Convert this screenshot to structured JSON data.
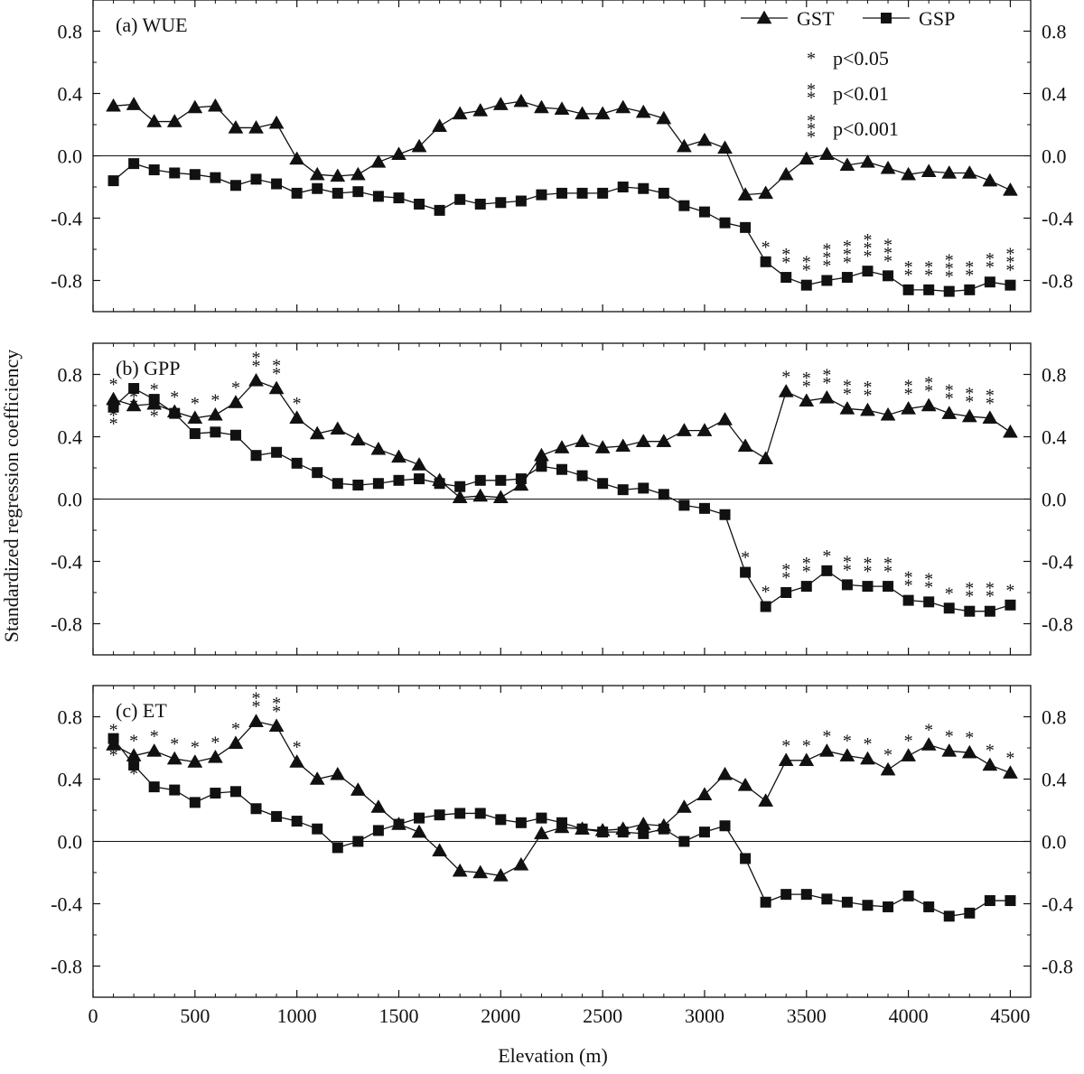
{
  "chart_data": {
    "type": "line",
    "xlabel": "Elevation (m)",
    "ylabel": "Standardized regression coefficiency",
    "xlim": [
      0,
      4600
    ],
    "x_ticks": [
      0,
      500,
      1000,
      1500,
      2000,
      2500,
      3000,
      3500,
      4000,
      4500
    ],
    "x_tick_labels": [
      "0",
      "500",
      "1000",
      "1500",
      "2000",
      "2500",
      "3000",
      "3500",
      "4000",
      "4500"
    ],
    "ylim": [
      -1.0,
      1.0
    ],
    "y_ticks": [
      0.8,
      0.4,
      0.0,
      -0.4,
      -0.8
    ],
    "y_tick_labels": [
      "0.8",
      "0.4",
      "0.0",
      "-0.4",
      "-0.8"
    ],
    "x": [
      100,
      200,
      300,
      400,
      500,
      600,
      700,
      800,
      900,
      1000,
      1100,
      1200,
      1300,
      1400,
      1500,
      1600,
      1700,
      1800,
      1900,
      2000,
      2100,
      2200,
      2300,
      2400,
      2500,
      2600,
      2700,
      2800,
      2900,
      3000,
      3100,
      3200,
      3300,
      3400,
      3500,
      3600,
      3700,
      3800,
      3900,
      4000,
      4100,
      4200,
      4300,
      4400,
      4500
    ],
    "legend": {
      "entries": [
        {
          "name": "GST",
          "marker": "triangle"
        },
        {
          "name": "GSP",
          "marker": "square"
        }
      ],
      "significance": [
        {
          "stars": 1,
          "label": "p<0.05"
        },
        {
          "stars": 2,
          "label": "p<0.01"
        },
        {
          "stars": 3,
          "label": "p<0.001"
        }
      ],
      "position": "top-right of panel (a)"
    },
    "panels": [
      {
        "label": "(a) WUE",
        "series": [
          {
            "name": "GST",
            "marker": "triangle",
            "values": [
              0.32,
              0.33,
              0.22,
              0.22,
              0.31,
              0.32,
              0.18,
              0.18,
              0.21,
              -0.02,
              -0.12,
              -0.13,
              -0.12,
              -0.04,
              0.01,
              0.06,
              0.19,
              0.27,
              0.29,
              0.33,
              0.35,
              0.31,
              0.3,
              0.27,
              0.27,
              0.31,
              0.28,
              0.24,
              0.06,
              0.1,
              0.05,
              -0.25,
              -0.24,
              -0.12,
              -0.02,
              0.01,
              -0.06,
              -0.04,
              -0.08,
              -0.12,
              -0.1,
              -0.11,
              -0.11,
              -0.16,
              -0.22
            ],
            "stars": [
              0,
              0,
              0,
              0,
              0,
              0,
              0,
              0,
              0,
              0,
              0,
              0,
              0,
              0,
              0,
              0,
              0,
              0,
              0,
              0,
              0,
              0,
              0,
              0,
              0,
              0,
              0,
              0,
              0,
              0,
              0,
              0,
              0,
              0,
              0,
              0,
              0,
              0,
              0,
              0,
              0,
              0,
              0,
              0,
              0
            ]
          },
          {
            "name": "GSP",
            "marker": "square",
            "values": [
              -0.16,
              -0.05,
              -0.09,
              -0.11,
              -0.12,
              -0.14,
              -0.19,
              -0.15,
              -0.18,
              -0.24,
              -0.21,
              -0.24,
              -0.23,
              -0.26,
              -0.27,
              -0.31,
              -0.35,
              -0.28,
              -0.31,
              -0.3,
              -0.29,
              -0.25,
              -0.24,
              -0.24,
              -0.24,
              -0.2,
              -0.21,
              -0.24,
              -0.32,
              -0.36,
              -0.43,
              -0.46,
              -0.68,
              -0.78,
              -0.83,
              -0.8,
              -0.78,
              -0.74,
              -0.77,
              -0.86,
              -0.86,
              -0.87,
              -0.86,
              -0.81,
              -0.83
            ],
            "stars": [
              0,
              0,
              0,
              0,
              0,
              0,
              0,
              0,
              0,
              0,
              0,
              0,
              0,
              0,
              0,
              0,
              0,
              0,
              0,
              0,
              0,
              0,
              0,
              0,
              0,
              0,
              0,
              0,
              0,
              0,
              0,
              0,
              1,
              2,
              2,
              3,
              3,
              3,
              3,
              2,
              2,
              3,
              2,
              2,
              3
            ],
            "star_side": "above"
          }
        ]
      },
      {
        "label": "(b) GPP",
        "series": [
          {
            "name": "GST",
            "marker": "triangle",
            "values": [
              0.64,
              0.6,
              0.61,
              0.56,
              0.52,
              0.54,
              0.62,
              0.76,
              0.71,
              0.52,
              0.42,
              0.45,
              0.38,
              0.32,
              0.27,
              0.22,
              0.12,
              0.01,
              0.02,
              0.01,
              0.09,
              0.28,
              0.33,
              0.37,
              0.33,
              0.34,
              0.37,
              0.37,
              0.44,
              0.44,
              0.51,
              0.34,
              0.26,
              0.69,
              0.63,
              0.65,
              0.58,
              0.57,
              0.54,
              0.58,
              0.6,
              0.55,
              0.53,
              0.52,
              0.43
            ],
            "stars": [
              1,
              1,
              1,
              1,
              1,
              1,
              1,
              2,
              2,
              1,
              0,
              0,
              0,
              0,
              0,
              0,
              0,
              0,
              0,
              0,
              0,
              0,
              0,
              0,
              0,
              0,
              0,
              0,
              0,
              0,
              0,
              0,
              0,
              1,
              2,
              2,
              2,
              2,
              0,
              2,
              2,
              2,
              2,
              2,
              0
            ],
            "star_side": "above"
          },
          {
            "name": "GSP",
            "marker": "square",
            "values": [
              0.59,
              0.71,
              0.64,
              0.55,
              0.42,
              0.43,
              0.41,
              0.28,
              0.3,
              0.23,
              0.17,
              0.1,
              0.09,
              0.1,
              0.12,
              0.13,
              0.1,
              0.08,
              0.12,
              0.12,
              0.13,
              0.21,
              0.19,
              0.15,
              0.1,
              0.06,
              0.07,
              0.03,
              -0.04,
              -0.06,
              -0.1,
              -0.47,
              -0.69,
              -0.6,
              -0.56,
              -0.46,
              -0.55,
              -0.56,
              -0.56,
              -0.65,
              -0.66,
              -0.7,
              -0.72,
              -0.72,
              -0.68
            ],
            "stars": [
              2,
              2,
              2,
              0,
              0,
              0,
              0,
              0,
              0,
              0,
              0,
              0,
              0,
              0,
              0,
              0,
              0,
              0,
              0,
              0,
              0,
              0,
              0,
              0,
              0,
              0,
              0,
              0,
              0,
              0,
              0,
              1,
              1,
              2,
              2,
              1,
              2,
              2,
              2,
              2,
              2,
              1,
              2,
              2,
              1
            ],
            "star_side": "below-top-above-bottom"
          }
        ]
      },
      {
        "label": "(c) ET",
        "series": [
          {
            "name": "GST",
            "marker": "triangle",
            "values": [
              0.62,
              0.55,
              0.58,
              0.53,
              0.51,
              0.54,
              0.63,
              0.77,
              0.74,
              0.51,
              0.4,
              0.43,
              0.33,
              0.22,
              0.11,
              0.06,
              -0.06,
              -0.19,
              -0.2,
              -0.22,
              -0.15,
              0.05,
              0.09,
              0.08,
              0.07,
              0.08,
              0.11,
              0.1,
              0.22,
              0.3,
              0.43,
              0.36,
              0.26,
              0.52,
              0.52,
              0.58,
              0.55,
              0.53,
              0.46,
              0.55,
              0.62,
              0.58,
              0.57,
              0.49,
              0.44
            ],
            "stars": [
              1,
              1,
              1,
              1,
              1,
              1,
              1,
              2,
              2,
              1,
              0,
              0,
              0,
              0,
              0,
              0,
              0,
              0,
              0,
              0,
              0,
              0,
              0,
              0,
              0,
              0,
              0,
              0,
              0,
              0,
              0,
              0,
              0,
              1,
              1,
              1,
              1,
              1,
              1,
              1,
              1,
              1,
              1,
              1,
              1
            ],
            "star_side": "above"
          },
          {
            "name": "GSP",
            "marker": "square",
            "values": [
              0.66,
              0.49,
              0.35,
              0.33,
              0.25,
              0.31,
              0.32,
              0.21,
              0.16,
              0.13,
              0.08,
              -0.04,
              0.0,
              0.07,
              0.11,
              0.15,
              0.17,
              0.18,
              0.18,
              0.14,
              0.12,
              0.15,
              0.12,
              0.08,
              0.06,
              0.06,
              0.05,
              0.08,
              0.0,
              0.06,
              0.1,
              -0.11,
              -0.39,
              -0.34,
              -0.34,
              -0.37,
              -0.39,
              -0.41,
              -0.42,
              -0.35,
              -0.42,
              -0.48,
              -0.46,
              -0.38,
              -0.38
            ],
            "stars": [
              2,
              1,
              0,
              0,
              0,
              0,
              0,
              0,
              0,
              0,
              0,
              0,
              0,
              0,
              0,
              0,
              0,
              0,
              0,
              0,
              0,
              0,
              0,
              0,
              0,
              0,
              0,
              0,
              0,
              0,
              0,
              0,
              0,
              0,
              0,
              0,
              0,
              0,
              0,
              0,
              0,
              0,
              0,
              0,
              0
            ],
            "star_side": "below"
          }
        ]
      }
    ]
  }
}
